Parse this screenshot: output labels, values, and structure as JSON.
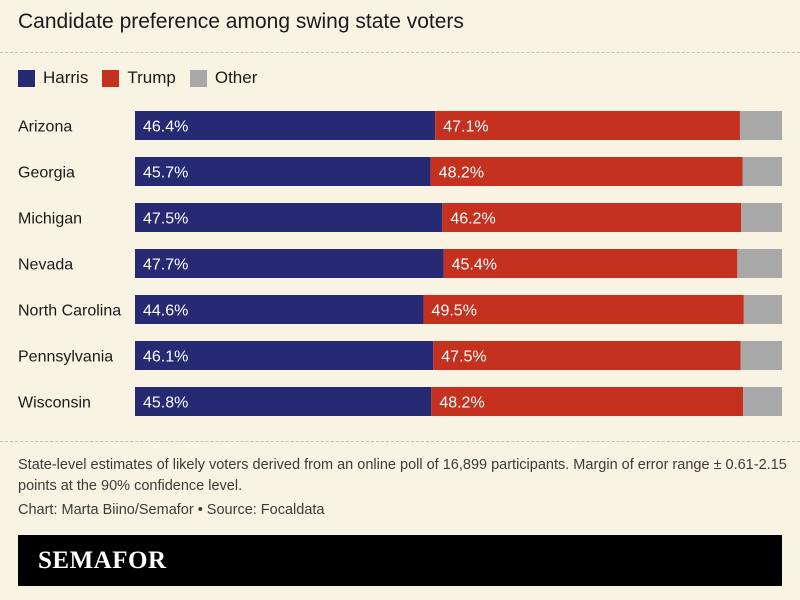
{
  "title": "Candidate preference among swing state voters",
  "legend": [
    {
      "label": "Harris",
      "color": "#252a72"
    },
    {
      "label": "Trump",
      "color": "#c4311f"
    },
    {
      "label": "Other",
      "color": "#a8a8a8"
    }
  ],
  "chart_data": {
    "type": "bar",
    "orientation": "horizontal-stacked-100",
    "categories": [
      "Arizona",
      "Georgia",
      "Michigan",
      "Nevada",
      "North Carolina",
      "Pennsylvania",
      "Wisconsin"
    ],
    "series": [
      {
        "name": "Harris",
        "color": "#252a72",
        "values": [
          46.4,
          45.7,
          47.5,
          47.7,
          44.6,
          46.1,
          45.8
        ],
        "labels": [
          "46.4%",
          "45.7%",
          "47.5%",
          "47.7%",
          "44.6%",
          "46.1%",
          "45.8%"
        ]
      },
      {
        "name": "Trump",
        "color": "#c4311f",
        "values": [
          47.1,
          48.2,
          46.2,
          45.4,
          49.5,
          47.5,
          48.2
        ],
        "labels": [
          "47.1%",
          "48.2%",
          "46.2%",
          "45.4%",
          "49.5%",
          "47.5%",
          "48.2%"
        ]
      },
      {
        "name": "Other",
        "color": "#a8a8a8",
        "values": [
          6.5,
          6.1,
          6.3,
          6.9,
          5.9,
          6.4,
          6.0
        ]
      }
    ],
    "xlim": [
      0,
      100
    ],
    "title": "Candidate preference among swing state voters"
  },
  "footnote": "State-level estimates of likely voters derived from an online poll of 16,899 participants. Margin of error range ± 0.61-2.15 points at the 90% confidence level.",
  "credit": "Chart: Marta Biino/Semafor • Source: Focaldata",
  "brand": "SEMAFOR"
}
